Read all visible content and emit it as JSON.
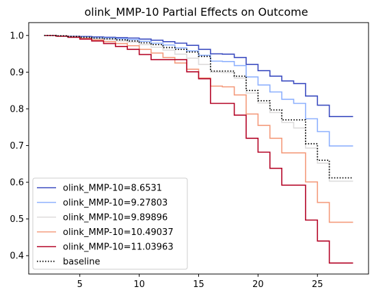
{
  "chart_data": {
    "type": "line",
    "step": "post",
    "title": "olink_MMP-10 Partial Effects on Outcome",
    "xlabel": "",
    "ylabel": "",
    "xlim": [
      0.7,
      29.3
    ],
    "ylim": [
      0.35,
      1.035
    ],
    "xticks": [
      5,
      10,
      15,
      20,
      25
    ],
    "yticks": [
      0.4,
      0.5,
      0.6,
      0.7,
      0.8,
      0.9,
      1.0
    ],
    "ytick_labels": [
      "0.4",
      "0.5",
      "0.6",
      "0.7",
      "0.8",
      "0.9",
      "1.0"
    ],
    "legend_position": "lower-left",
    "x": [
      2,
      3,
      4,
      5,
      6,
      7,
      8,
      9,
      10,
      11,
      12,
      13,
      14,
      15,
      16,
      17,
      18,
      19,
      20,
      21,
      22,
      23,
      24,
      25,
      26,
      27,
      28
    ],
    "series": [
      {
        "name": "olink_MMP-10=8.6531",
        "color": "#3b4cc0",
        "style": "solid",
        "values": [
          1.0,
          0.999,
          0.998,
          0.997,
          0.996,
          0.995,
          0.994,
          0.993,
          0.99,
          0.987,
          0.983,
          0.979,
          0.973,
          0.962,
          0.95,
          0.949,
          0.94,
          0.921,
          0.904,
          0.889,
          0.876,
          0.869,
          0.835,
          0.81,
          0.779,
          0.779,
          0.779
        ]
      },
      {
        "name": "olink_MMP-10=9.27803",
        "color": "#8db0fe",
        "style": "solid",
        "values": [
          1.0,
          0.999,
          0.997,
          0.995,
          0.994,
          0.993,
          0.991,
          0.989,
          0.984,
          0.979,
          0.974,
          0.966,
          0.958,
          0.946,
          0.93,
          0.929,
          0.918,
          0.887,
          0.865,
          0.846,
          0.826,
          0.815,
          0.773,
          0.738,
          0.699,
          0.699,
          0.699
        ]
      },
      {
        "name": "olink_MMP-10=9.89896",
        "color": "#dddcdc",
        "style": "solid",
        "values": [
          1.0,
          0.999,
          0.997,
          0.994,
          0.991,
          0.988,
          0.985,
          0.982,
          0.975,
          0.968,
          0.96,
          0.949,
          0.938,
          0.921,
          0.9,
          0.899,
          0.884,
          0.843,
          0.816,
          0.79,
          0.763,
          0.748,
          0.693,
          0.652,
          0.603,
          0.603,
          0.603
        ]
      },
      {
        "name": "olink_MMP-10=10.49037",
        "color": "#f49a7b",
        "style": "solid",
        "values": [
          1.0,
          0.998,
          0.996,
          0.992,
          0.988,
          0.983,
          0.978,
          0.972,
          0.962,
          0.952,
          0.94,
          0.925,
          0.908,
          0.884,
          0.862,
          0.86,
          0.838,
          0.786,
          0.755,
          0.72,
          0.68,
          0.68,
          0.601,
          0.545,
          0.491,
          0.491,
          0.491
        ]
      },
      {
        "name": "olink_MMP-10=11.03963",
        "color": "#b40426",
        "style": "solid",
        "values": [
          1.0,
          0.998,
          0.995,
          0.99,
          0.985,
          0.978,
          0.97,
          0.962,
          0.948,
          0.934,
          0.934,
          0.934,
          0.901,
          0.882,
          0.815,
          0.815,
          0.783,
          0.72,
          0.682,
          0.638,
          0.592,
          0.592,
          0.497,
          0.44,
          0.38,
          0.38,
          0.38
        ]
      },
      {
        "name": "baseline",
        "color": "#000000",
        "style": "dotted",
        "values": [
          1.0,
          0.999,
          0.997,
          0.995,
          0.993,
          0.991,
          0.988,
          0.985,
          0.98,
          0.975,
          0.967,
          0.962,
          0.955,
          0.943,
          0.903,
          0.903,
          0.889,
          0.85,
          0.822,
          0.797,
          0.77,
          0.77,
          0.705,
          0.66,
          0.612,
          0.612,
          0.612
        ]
      }
    ]
  }
}
